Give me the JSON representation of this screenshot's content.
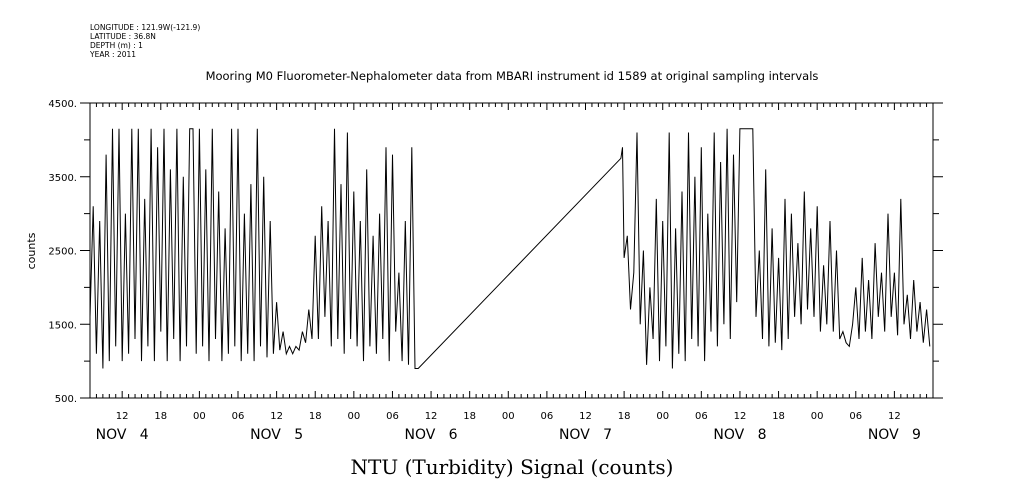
{
  "chart_data": {
    "type": "line",
    "metadata": [
      "LONGITUDE : 121.9W(-121.9)",
      "LATITUDE : 36.8N",
      "DEPTH (m) : 1",
      "YEAR : 2011"
    ],
    "title": "Mooring M0 Fluorometer-Nephalometer data from MBARI instrument id 1589 at original sampling intervals",
    "xlabel": "NTU (Turbidity) Signal (counts)",
    "ylabel": "counts",
    "ylim": [
      500,
      4500
    ],
    "yticks": [
      500,
      1500,
      2500,
      3500,
      4500
    ],
    "ytick_labels": [
      "500.",
      "1500.",
      "2500.",
      "3500.",
      "4500."
    ],
    "xlim": [
      "2011-11-04 07:00",
      "2011-11-09 18:00"
    ],
    "hour_labels": [
      {
        "t": "2011-11-04 12:00",
        "label": "12"
      },
      {
        "t": "2011-11-04 18:00",
        "label": "18"
      },
      {
        "t": "2011-11-05 00:00",
        "label": "00"
      },
      {
        "t": "2011-11-05 06:00",
        "label": "06"
      },
      {
        "t": "2011-11-05 12:00",
        "label": "12"
      },
      {
        "t": "2011-11-05 18:00",
        "label": "18"
      },
      {
        "t": "2011-11-06 00:00",
        "label": "00"
      },
      {
        "t": "2011-11-06 06:00",
        "label": "06"
      },
      {
        "t": "2011-11-06 12:00",
        "label": "12"
      },
      {
        "t": "2011-11-06 18:00",
        "label": "18"
      },
      {
        "t": "2011-11-07 00:00",
        "label": "00"
      },
      {
        "t": "2011-11-07 06:00",
        "label": "06"
      },
      {
        "t": "2011-11-07 12:00",
        "label": "12"
      },
      {
        "t": "2011-11-07 18:00",
        "label": "18"
      },
      {
        "t": "2011-11-08 00:00",
        "label": "00"
      },
      {
        "t": "2011-11-08 06:00",
        "label": "06"
      },
      {
        "t": "2011-11-08 12:00",
        "label": "12"
      },
      {
        "t": "2011-11-08 18:00",
        "label": "18"
      },
      {
        "t": "2011-11-09 00:00",
        "label": "00"
      },
      {
        "t": "2011-11-09 06:00",
        "label": "06"
      },
      {
        "t": "2011-11-09 12:00",
        "label": "12"
      }
    ],
    "day_labels": [
      {
        "t": "2011-11-04 12:00",
        "label": "NOV 4"
      },
      {
        "t": "2011-11-05 12:00",
        "label": "NOV 5"
      },
      {
        "t": "2011-11-06 12:00",
        "label": "NOV 6"
      },
      {
        "t": "2011-11-07 12:00",
        "label": "NOV 7"
      },
      {
        "t": "2011-11-08 12:00",
        "label": "NOV 8"
      },
      {
        "t": "2011-11-09 12:00",
        "label": "NOV 9"
      }
    ],
    "series": [
      {
        "points": [
          [
            "2011-11-04 07:00",
            1600
          ],
          [
            "2011-11-04 07:30",
            3100
          ],
          [
            "2011-11-04 08:00",
            1100
          ],
          [
            "2011-11-04 08:30",
            2900
          ],
          [
            "2011-11-04 09:00",
            900
          ],
          [
            "2011-11-04 09:30",
            3800
          ],
          [
            "2011-11-04 10:00",
            1000
          ],
          [
            "2011-11-04 10:30",
            4150
          ],
          [
            "2011-11-04 11:00",
            1200
          ],
          [
            "2011-11-04 11:30",
            4150
          ],
          [
            "2011-11-04 12:00",
            1000
          ],
          [
            "2011-11-04 12:30",
            3000
          ],
          [
            "2011-11-04 13:00",
            1100
          ],
          [
            "2011-11-04 13:30",
            4150
          ],
          [
            "2011-11-04 14:00",
            1300
          ],
          [
            "2011-11-04 14:30",
            4150
          ],
          [
            "2011-11-04 15:00",
            1000
          ],
          [
            "2011-11-04 15:30",
            3200
          ],
          [
            "2011-11-04 16:00",
            1200
          ],
          [
            "2011-11-04 16:30",
            4150
          ],
          [
            "2011-11-04 17:00",
            1000
          ],
          [
            "2011-11-04 17:30",
            3900
          ],
          [
            "2011-11-04 18:00",
            1400
          ],
          [
            "2011-11-04 18:30",
            4150
          ],
          [
            "2011-11-04 19:00",
            1000
          ],
          [
            "2011-11-04 19:30",
            3600
          ],
          [
            "2011-11-04 20:00",
            1300
          ],
          [
            "2011-11-04 20:30",
            4150
          ],
          [
            "2011-11-04 21:00",
            1000
          ],
          [
            "2011-11-04 21:30",
            3500
          ],
          [
            "2011-11-04 22:00",
            1200
          ],
          [
            "2011-11-04 22:30",
            4150
          ],
          [
            "2011-11-04 23:00",
            4150
          ],
          [
            "2011-11-04 23:30",
            1100
          ],
          [
            "2011-11-05 00:00",
            4150
          ],
          [
            "2011-11-05 00:30",
            1200
          ],
          [
            "2011-11-05 01:00",
            3600
          ],
          [
            "2011-11-05 01:30",
            1000
          ],
          [
            "2011-11-05 02:00",
            4150
          ],
          [
            "2011-11-05 02:30",
            1300
          ],
          [
            "2011-11-05 03:00",
            3300
          ],
          [
            "2011-11-05 03:30",
            1000
          ],
          [
            "2011-11-05 04:00",
            2800
          ],
          [
            "2011-11-05 04:30",
            1100
          ],
          [
            "2011-11-05 05:00",
            4150
          ],
          [
            "2011-11-05 05:30",
            1200
          ],
          [
            "2011-11-05 06:00",
            4150
          ],
          [
            "2011-11-05 06:30",
            1000
          ],
          [
            "2011-11-05 07:00",
            3000
          ],
          [
            "2011-11-05 07:30",
            1100
          ],
          [
            "2011-11-05 08:00",
            3400
          ],
          [
            "2011-11-05 08:30",
            1000
          ],
          [
            "2011-11-05 09:00",
            4150
          ],
          [
            "2011-11-05 09:30",
            1200
          ],
          [
            "2011-11-05 10:00",
            3500
          ],
          [
            "2011-11-05 10:30",
            1050
          ],
          [
            "2011-11-05 11:00",
            2900
          ],
          [
            "2011-11-05 11:30",
            1100
          ],
          [
            "2011-11-05 12:00",
            1800
          ],
          [
            "2011-11-05 12:30",
            1150
          ],
          [
            "2011-11-05 13:00",
            1400
          ],
          [
            "2011-11-05 13:30",
            1100
          ],
          [
            "2011-11-05 14:00",
            1200
          ],
          [
            "2011-11-05 14:30",
            1100
          ],
          [
            "2011-11-05 15:00",
            1200
          ],
          [
            "2011-11-05 15:30",
            1150
          ],
          [
            "2011-11-05 16:00",
            1400
          ],
          [
            "2011-11-05 16:30",
            1250
          ],
          [
            "2011-11-05 17:00",
            1700
          ],
          [
            "2011-11-05 17:30",
            1300
          ],
          [
            "2011-11-05 18:00",
            2700
          ],
          [
            "2011-11-05 18:30",
            1300
          ],
          [
            "2011-11-05 19:00",
            3100
          ],
          [
            "2011-11-05 19:30",
            1600
          ],
          [
            "2011-11-05 20:00",
            2900
          ],
          [
            "2011-11-05 20:30",
            1200
          ],
          [
            "2011-11-05 21:00",
            4150
          ],
          [
            "2011-11-05 21:30",
            1300
          ],
          [
            "2011-11-05 22:00",
            3400
          ],
          [
            "2011-11-05 22:30",
            1100
          ],
          [
            "2011-11-05 23:00",
            4100
          ],
          [
            "2011-11-05 23:30",
            1300
          ],
          [
            "2011-11-06 00:00",
            3300
          ],
          [
            "2011-11-06 00:30",
            1200
          ],
          [
            "2011-11-06 01:00",
            2900
          ],
          [
            "2011-11-06 01:30",
            1000
          ],
          [
            "2011-11-06 02:00",
            3600
          ],
          [
            "2011-11-06 02:30",
            1200
          ],
          [
            "2011-11-06 03:00",
            2700
          ],
          [
            "2011-11-06 03:30",
            1100
          ],
          [
            "2011-11-06 04:00",
            3000
          ],
          [
            "2011-11-06 04:30",
            1300
          ],
          [
            "2011-11-06 05:00",
            3900
          ],
          [
            "2011-11-06 05:30",
            1000
          ],
          [
            "2011-11-06 06:00",
            3800
          ],
          [
            "2011-11-06 06:30",
            1400
          ],
          [
            "2011-11-06 07:00",
            2200
          ],
          [
            "2011-11-06 07:30",
            1000
          ],
          [
            "2011-11-06 08:00",
            2900
          ],
          [
            "2011-11-06 08:30",
            950
          ],
          [
            "2011-11-06 09:00",
            3900
          ],
          [
            "2011-11-06 09:30",
            900
          ],
          [
            "2011-11-06 10:00",
            900
          ],
          [
            "2011-11-07 17:30",
            3750
          ],
          [
            "2011-11-07 17:45",
            3900
          ],
          [
            "2011-11-07 18:00",
            2400
          ],
          [
            "2011-11-07 18:30",
            2700
          ],
          [
            "2011-11-07 19:00",
            1700
          ],
          [
            "2011-11-07 19:30",
            2200
          ],
          [
            "2011-11-07 20:00",
            4100
          ],
          [
            "2011-11-07 20:30",
            1500
          ],
          [
            "2011-11-07 21:00",
            2500
          ],
          [
            "2011-11-07 21:30",
            950
          ],
          [
            "2011-11-07 22:00",
            2000
          ],
          [
            "2011-11-07 22:30",
            1300
          ],
          [
            "2011-11-07 23:00",
            3200
          ],
          [
            "2011-11-07 23:30",
            1000
          ],
          [
            "2011-11-08 00:00",
            2900
          ],
          [
            "2011-11-08 00:30",
            1200
          ],
          [
            "2011-11-08 01:00",
            4100
          ],
          [
            "2011-11-08 01:30",
            900
          ],
          [
            "2011-11-08 02:00",
            2800
          ],
          [
            "2011-11-08 02:30",
            1100
          ],
          [
            "2011-11-08 03:00",
            3300
          ],
          [
            "2011-11-08 03:30",
            1000
          ],
          [
            "2011-11-08 04:00",
            4100
          ],
          [
            "2011-11-08 04:30",
            1300
          ],
          [
            "2011-11-08 05:00",
            3500
          ],
          [
            "2011-11-08 05:30",
            1200
          ],
          [
            "2011-11-08 06:00",
            3900
          ],
          [
            "2011-11-08 06:30",
            1000
          ],
          [
            "2011-11-08 07:00",
            3000
          ],
          [
            "2011-11-08 07:30",
            1400
          ],
          [
            "2011-11-08 08:00",
            4100
          ],
          [
            "2011-11-08 08:30",
            1200
          ],
          [
            "2011-11-08 09:00",
            3700
          ],
          [
            "2011-11-08 09:30",
            1500
          ],
          [
            "2011-11-08 10:00",
            4150
          ],
          [
            "2011-11-08 10:30",
            1300
          ],
          [
            "2011-11-08 11:00",
            3800
          ],
          [
            "2011-11-08 11:30",
            1800
          ],
          [
            "2011-11-08 12:00",
            4150
          ],
          [
            "2011-11-08 12:30",
            4150
          ],
          [
            "2011-11-08 13:00",
            4150
          ],
          [
            "2011-11-08 13:30",
            4150
          ],
          [
            "2011-11-08 14:00",
            4150
          ],
          [
            "2011-11-08 14:30",
            1600
          ],
          [
            "2011-11-08 15:00",
            2500
          ],
          [
            "2011-11-08 15:30",
            1300
          ],
          [
            "2011-11-08 16:00",
            3600
          ],
          [
            "2011-11-08 16:30",
            1200
          ],
          [
            "2011-11-08 17:00",
            2800
          ],
          [
            "2011-11-08 17:30",
            1250
          ],
          [
            "2011-11-08 18:00",
            2400
          ],
          [
            "2011-11-08 18:30",
            1150
          ],
          [
            "2011-11-08 19:00",
            3200
          ],
          [
            "2011-11-08 19:30",
            1300
          ],
          [
            "2011-11-08 20:00",
            3000
          ],
          [
            "2011-11-08 20:30",
            1600
          ],
          [
            "2011-11-08 21:00",
            2600
          ],
          [
            "2011-11-08 21:30",
            1500
          ],
          [
            "2011-11-08 22:00",
            3300
          ],
          [
            "2011-11-08 22:30",
            1700
          ],
          [
            "2011-11-08 23:00",
            2800
          ],
          [
            "2011-11-08 23:30",
            1600
          ],
          [
            "2011-11-09 00:00",
            3100
          ],
          [
            "2011-11-09 00:30",
            1400
          ],
          [
            "2011-11-09 01:00",
            2300
          ],
          [
            "2011-11-09 01:30",
            1500
          ],
          [
            "2011-11-09 02:00",
            2900
          ],
          [
            "2011-11-09 02:30",
            1400
          ],
          [
            "2011-11-09 03:00",
            2500
          ],
          [
            "2011-11-09 03:30",
            1300
          ],
          [
            "2011-11-09 04:00",
            1400
          ],
          [
            "2011-11-09 04:30",
            1250
          ],
          [
            "2011-11-09 05:00",
            1200
          ],
          [
            "2011-11-09 05:30",
            1500
          ],
          [
            "2011-11-09 06:00",
            2000
          ],
          [
            "2011-11-09 06:30",
            1300
          ],
          [
            "2011-11-09 07:00",
            2400
          ],
          [
            "2011-11-09 07:30",
            1400
          ],
          [
            "2011-11-09 08:00",
            2100
          ],
          [
            "2011-11-09 08:30",
            1300
          ],
          [
            "2011-11-09 09:00",
            2600
          ],
          [
            "2011-11-09 09:30",
            1600
          ],
          [
            "2011-11-09 10:00",
            2200
          ],
          [
            "2011-11-09 10:30",
            1400
          ],
          [
            "2011-11-09 11:00",
            3000
          ],
          [
            "2011-11-09 11:30",
            1600
          ],
          [
            "2011-11-09 12:00",
            2200
          ],
          [
            "2011-11-09 12:30",
            1350
          ],
          [
            "2011-11-09 13:00",
            3200
          ],
          [
            "2011-11-09 13:30",
            1500
          ],
          [
            "2011-11-09 14:00",
            1900
          ],
          [
            "2011-11-09 14:30",
            1300
          ],
          [
            "2011-11-09 15:00",
            2100
          ],
          [
            "2011-11-09 15:30",
            1400
          ],
          [
            "2011-11-09 16:00",
            1800
          ],
          [
            "2011-11-09 16:30",
            1250
          ],
          [
            "2011-11-09 17:00",
            1700
          ],
          [
            "2011-11-09 17:30",
            1200
          ]
        ]
      }
    ]
  }
}
